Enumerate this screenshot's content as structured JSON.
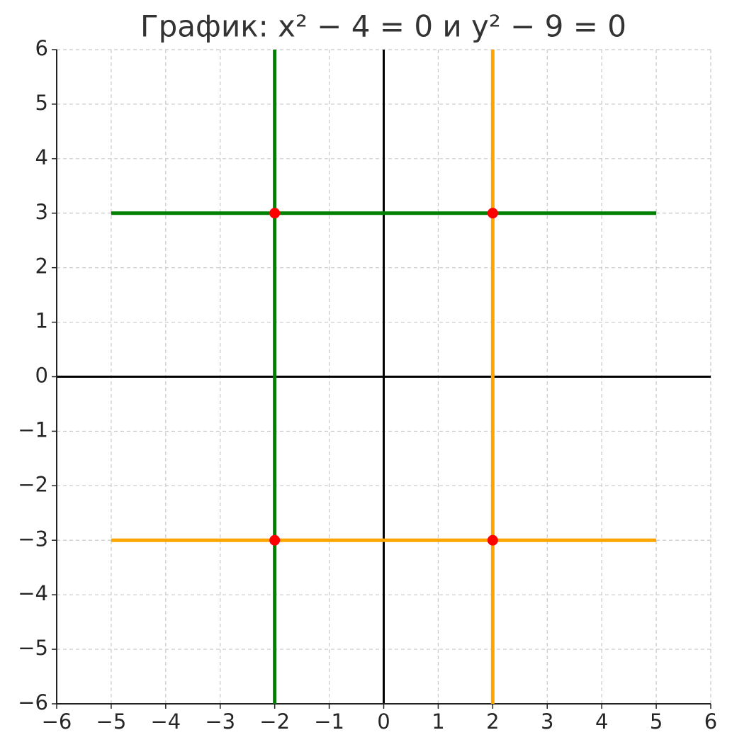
{
  "chart_data": {
    "type": "line",
    "title": "График: x² − 4 = 0 и y² − 9 = 0",
    "xlim": [
      -6,
      6
    ],
    "ylim": [
      -6,
      6
    ],
    "xticks": [
      {
        "value": -6,
        "label": "−6"
      },
      {
        "value": -5,
        "label": "−5"
      },
      {
        "value": -4,
        "label": "−4"
      },
      {
        "value": -3,
        "label": "−3"
      },
      {
        "value": -2,
        "label": "−2"
      },
      {
        "value": -1,
        "label": "−1"
      },
      0,
      1,
      2,
      3,
      4,
      5,
      6
    ],
    "yticks": [
      {
        "value": -6,
        "label": "−6"
      },
      {
        "value": -5,
        "label": "−5"
      },
      {
        "value": -4,
        "label": "−4"
      },
      {
        "value": -3,
        "label": "−3"
      },
      {
        "value": -2,
        "label": "−2"
      },
      {
        "value": -1,
        "label": "−1"
      },
      0,
      1,
      2,
      3,
      4,
      5,
      6
    ],
    "grid": true,
    "zero_lines": true,
    "series": [
      {
        "color": "green",
        "x": [
          -2,
          -2
        ],
        "values": [
          -6,
          6
        ]
      },
      {
        "color": "orange",
        "x": [
          2,
          2
        ],
        "values": [
          -6,
          6
        ]
      },
      {
        "color": "green",
        "x": [
          -5,
          5
        ],
        "values": [
          3,
          3
        ]
      },
      {
        "color": "orange",
        "x": [
          -5,
          5
        ],
        "values": [
          -3,
          -3
        ]
      },
      {
        "type": "scatter",
        "color": "red",
        "x": [
          -2,
          2,
          -2,
          2
        ],
        "values": [
          3,
          3,
          -3,
          -3
        ]
      }
    ]
  }
}
